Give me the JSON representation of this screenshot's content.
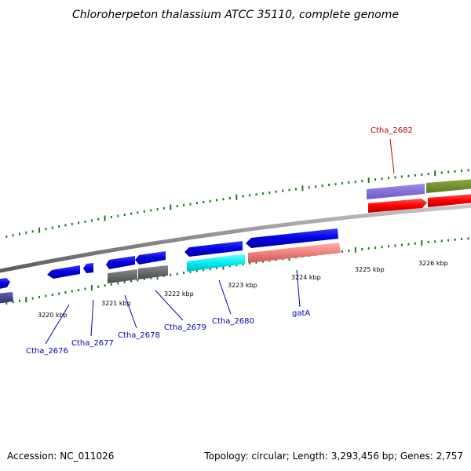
{
  "title": "Chloroherpeton thalassium ATCC 35110, complete genome",
  "footer": {
    "accession": "Accession: NC_011026",
    "summary": "Topology: circular; Length: 3,293,456 bp; Genes: 2,757"
  },
  "colors": {
    "backbone": "#8c8c8c",
    "tick": "#1a7a1a",
    "label_blue": "#0000aa",
    "label_red": "#bb0000"
  },
  "ticks": [
    {
      "label": "3220 kbp"
    },
    {
      "label": "3221 kbp"
    },
    {
      "label": "3222 kbp"
    },
    {
      "label": "3223 kbp"
    },
    {
      "label": "3224 kbp"
    },
    {
      "label": "3225 kbp"
    },
    {
      "label": "3226 kbp"
    }
  ],
  "gene_labels": [
    {
      "text": "Ctha_2676",
      "color": "#0000aa"
    },
    {
      "text": "Ctha_2677",
      "color": "#0000aa"
    },
    {
      "text": "Ctha_2678",
      "color": "#0000aa"
    },
    {
      "text": "Ctha_2679",
      "color": "#0000aa"
    },
    {
      "text": "Ctha_2680",
      "color": "#0000aa"
    },
    {
      "text": "gatA",
      "color": "#0000aa"
    },
    {
      "text": "Ctha_2682",
      "color": "#bb0000"
    }
  ]
}
